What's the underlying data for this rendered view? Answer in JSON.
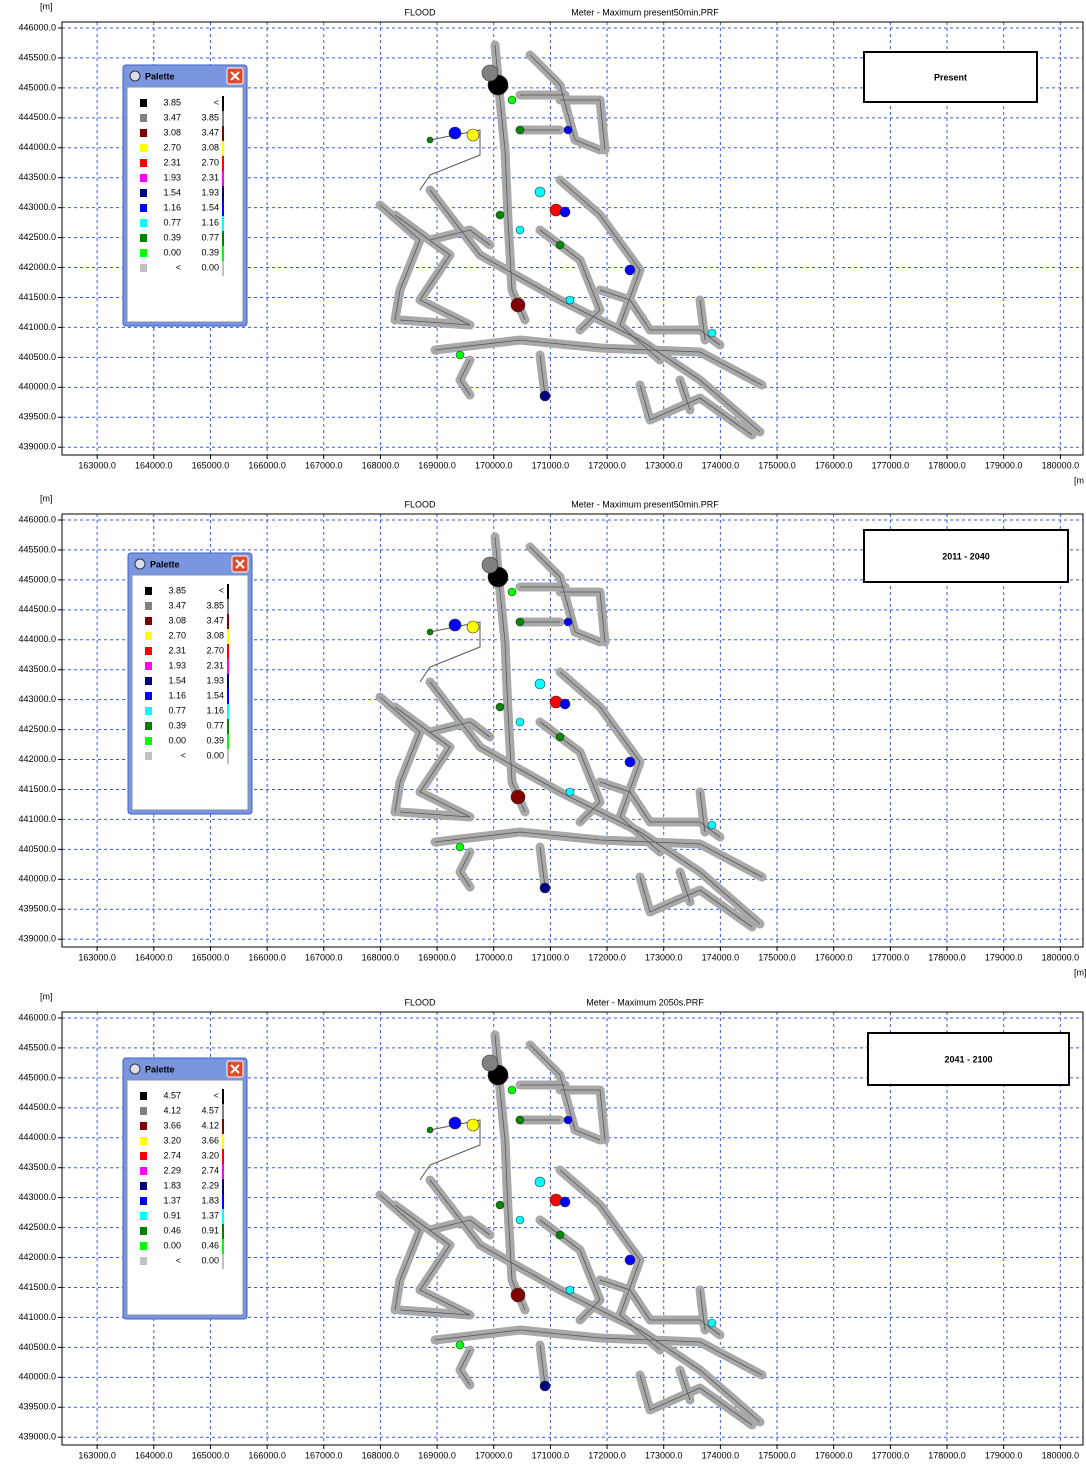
{
  "chart_data": [
    {
      "type": "map",
      "y_label": "[m]",
      "title": "FLOOD",
      "subtitle": "Meter - Maximum  present50min.PRF",
      "x_label": "[m",
      "scenario": "Present",
      "xlim": [
        162380,
        180400
      ],
      "ylim": [
        438870,
        446100
      ],
      "grid": true,
      "xticks": [
        {
          "value": 163000,
          "label": "163000.0"
        },
        {
          "value": 164000,
          "label": "164000.0"
        },
        {
          "value": 165000,
          "label": "165000.0"
        },
        {
          "value": 166000,
          "label": "166000.0"
        },
        {
          "value": 167000,
          "label": "167000.0"
        },
        {
          "value": 168000,
          "label": "168000.0"
        },
        {
          "value": 169000,
          "label": "169000.0"
        },
        {
          "value": 170000,
          "label": "170000.0"
        },
        {
          "value": 171000,
          "label": "171000.0"
        },
        {
          "value": 172000,
          "label": "172000.0"
        },
        {
          "value": 173000,
          "label": "173000.0"
        },
        {
          "value": 174000,
          "label": "174000.0"
        },
        {
          "value": 175000,
          "label": "175000.0"
        },
        {
          "value": 176000,
          "label": "176000.0"
        },
        {
          "value": 177000,
          "label": "177000.0"
        },
        {
          "value": 178000,
          "label": "178000.0"
        },
        {
          "value": 179000,
          "label": "179000.0"
        },
        {
          "value": 180000,
          "label": "180000.0"
        }
      ],
      "yticks": [
        {
          "value": 439000,
          "label": "439000.0"
        },
        {
          "value": 439500,
          "label": "439500.0"
        },
        {
          "value": 440000,
          "label": "440000.0"
        },
        {
          "value": 440500,
          "label": "440500.0"
        },
        {
          "value": 441000,
          "label": "441000.0"
        },
        {
          "value": 441500,
          "label": "441500.0"
        },
        {
          "value": 442000,
          "label": "442000.0"
        },
        {
          "value": 442500,
          "label": "442500.0"
        },
        {
          "value": 443000,
          "label": "443000.0"
        },
        {
          "value": 443500,
          "label": "443500.0"
        },
        {
          "value": 444000,
          "label": "444000.0"
        },
        {
          "value": 444500,
          "label": "444500.0"
        },
        {
          "value": 445000,
          "label": "445000.0"
        },
        {
          "value": 445500,
          "label": "445500.0"
        },
        {
          "value": 446000,
          "label": "446000.0"
        }
      ],
      "palette": {
        "title": "Palette",
        "rows": [
          {
            "color": "#000000",
            "from": "3.85",
            "to": "<"
          },
          {
            "color": "#808080",
            "from": "3.47",
            "to": "3.85"
          },
          {
            "color": "#800000",
            "from": "3.08",
            "to": "3.47"
          },
          {
            "color": "#ffff00",
            "from": "2.70",
            "to": "3.08"
          },
          {
            "color": "#ff0000",
            "from": "2.31",
            "to": "2.70"
          },
          {
            "color": "#ff00ff",
            "from": "1.93",
            "to": "2.31"
          },
          {
            "color": "#000080",
            "from": "1.54",
            "to": "1.93"
          },
          {
            "color": "#0000ff",
            "from": "1.16",
            "to": "1.54"
          },
          {
            "color": "#00ffff",
            "from": "0.77",
            "to": "1.16"
          },
          {
            "color": "#008000",
            "from": "0.39",
            "to": "0.77"
          },
          {
            "color": "#00ff00",
            "from": "0.00",
            "to": "0.39"
          },
          {
            "color": "#c0c0c0",
            "from": "<",
            "to": "0.00"
          }
        ]
      }
    },
    {
      "type": "map",
      "y_label": "[m]",
      "title": "FLOOD",
      "subtitle": "Meter - Maximum  present50min.PRF",
      "x_label": "[m]",
      "scenario": "2011 - 2040",
      "xlim": [
        162380,
        180400
      ],
      "ylim": [
        438870,
        446100
      ],
      "grid": true,
      "xticks": [
        {
          "value": 163000,
          "label": "163000.0"
        },
        {
          "value": 164000,
          "label": "164000.0"
        },
        {
          "value": 165000,
          "label": "165000.0"
        },
        {
          "value": 166000,
          "label": "166000.0"
        },
        {
          "value": 167000,
          "label": "167000.0"
        },
        {
          "value": 168000,
          "label": "168000.0"
        },
        {
          "value": 169000,
          "label": "169000.0"
        },
        {
          "value": 170000,
          "label": "170000.0"
        },
        {
          "value": 171000,
          "label": "171000.0"
        },
        {
          "value": 172000,
          "label": "172000.0"
        },
        {
          "value": 173000,
          "label": "173000.0"
        },
        {
          "value": 174000,
          "label": "174000.0"
        },
        {
          "value": 175000,
          "label": "175000.0"
        },
        {
          "value": 176000,
          "label": "176000.0"
        },
        {
          "value": 177000,
          "label": "177000.0"
        },
        {
          "value": 178000,
          "label": "178000.0"
        },
        {
          "value": 179000,
          "label": "179000.0"
        },
        {
          "value": 180000,
          "label": "180000.0"
        }
      ],
      "yticks": [
        {
          "value": 439000,
          "label": "439000.0"
        },
        {
          "value": 439500,
          "label": "439500.0"
        },
        {
          "value": 440000,
          "label": "440000.0"
        },
        {
          "value": 440500,
          "label": "440500.0"
        },
        {
          "value": 441000,
          "label": "441000.0"
        },
        {
          "value": 441500,
          "label": "441500.0"
        },
        {
          "value": 442000,
          "label": "442000.0"
        },
        {
          "value": 442500,
          "label": "442500.0"
        },
        {
          "value": 443000,
          "label": "443000.0"
        },
        {
          "value": 443500,
          "label": "443500.0"
        },
        {
          "value": 444000,
          "label": "444000.0"
        },
        {
          "value": 444500,
          "label": "444500.0"
        },
        {
          "value": 445000,
          "label": "445000.0"
        },
        {
          "value": 445500,
          "label": "445500.0"
        },
        {
          "value": 446000,
          "label": "446000.0"
        }
      ],
      "palette": {
        "title": "Palette",
        "rows": [
          {
            "color": "#000000",
            "from": "3.85",
            "to": "<"
          },
          {
            "color": "#808080",
            "from": "3.47",
            "to": "3.85"
          },
          {
            "color": "#800000",
            "from": "3.08",
            "to": "3.47"
          },
          {
            "color": "#ffff00",
            "from": "2.70",
            "to": "3.08"
          },
          {
            "color": "#ff0000",
            "from": "2.31",
            "to": "2.70"
          },
          {
            "color": "#ff00ff",
            "from": "1.93",
            "to": "2.31"
          },
          {
            "color": "#000080",
            "from": "1.54",
            "to": "1.93"
          },
          {
            "color": "#0000ff",
            "from": "1.16",
            "to": "1.54"
          },
          {
            "color": "#00ffff",
            "from": "0.77",
            "to": "1.16"
          },
          {
            "color": "#008000",
            "from": "0.39",
            "to": "0.77"
          },
          {
            "color": "#00ff00",
            "from": "0.00",
            "to": "0.39"
          },
          {
            "color": "#c0c0c0",
            "from": "<",
            "to": "0.00"
          }
        ]
      }
    },
    {
      "type": "map",
      "y_label": "[m]",
      "title": "FLOOD",
      "subtitle": "Meter - Maximum  2050s.PRF",
      "scenario": "2041 - 2100",
      "xlim": [
        162380,
        180400
      ],
      "ylim": [
        438870,
        446100
      ],
      "grid": true,
      "xticks": [
        {
          "value": 163000,
          "label": "163000.0"
        },
        {
          "value": 164000,
          "label": "164000.0"
        },
        {
          "value": 165000,
          "label": "165000.0"
        },
        {
          "value": 166000,
          "label": "166000.0"
        },
        {
          "value": 167000,
          "label": "167000.0"
        },
        {
          "value": 168000,
          "label": "168000.0"
        },
        {
          "value": 169000,
          "label": "169000.0"
        },
        {
          "value": 170000,
          "label": "170000.0"
        },
        {
          "value": 171000,
          "label": "171000.0"
        },
        {
          "value": 172000,
          "label": "172000.0"
        },
        {
          "value": 173000,
          "label": "173000.0"
        },
        {
          "value": 174000,
          "label": "174000.0"
        },
        {
          "value": 175000,
          "label": "175000.0"
        },
        {
          "value": 176000,
          "label": "176000.0"
        },
        {
          "value": 177000,
          "label": "177000.0"
        },
        {
          "value": 178000,
          "label": "178000.0"
        },
        {
          "value": 179000,
          "label": "179000.0"
        },
        {
          "value": 180000,
          "label": "180000.0"
        }
      ],
      "yticks": [
        {
          "value": 439000,
          "label": "439000.0"
        },
        {
          "value": 439500,
          "label": "439500.0"
        },
        {
          "value": 440000,
          "label": "440000.0"
        },
        {
          "value": 440500,
          "label": "440500.0"
        },
        {
          "value": 441000,
          "label": "441000.0"
        },
        {
          "value": 441500,
          "label": "441500.0"
        },
        {
          "value": 442000,
          "label": "442000.0"
        },
        {
          "value": 442500,
          "label": "442500.0"
        },
        {
          "value": 443000,
          "label": "443000.0"
        },
        {
          "value": 443500,
          "label": "443500.0"
        },
        {
          "value": 444000,
          "label": "444000.0"
        },
        {
          "value": 444500,
          "label": "444500.0"
        },
        {
          "value": 445000,
          "label": "445000.0"
        },
        {
          "value": 445500,
          "label": "445500.0"
        },
        {
          "value": 446000,
          "label": "446000.0"
        }
      ],
      "palette": {
        "title": "Palette",
        "rows": [
          {
            "color": "#000000",
            "from": "4.57",
            "to": "<"
          },
          {
            "color": "#808080",
            "from": "4.12",
            "to": "4.57"
          },
          {
            "color": "#800000",
            "from": "3.66",
            "to": "4.12"
          },
          {
            "color": "#ffff00",
            "from": "3.20",
            "to": "3.66"
          },
          {
            "color": "#ff0000",
            "from": "2.74",
            "to": "3.20"
          },
          {
            "color": "#ff00ff",
            "from": "2.29",
            "to": "2.74"
          },
          {
            "color": "#000080",
            "from": "1.83",
            "to": "2.29"
          },
          {
            "color": "#0000ff",
            "from": "1.37",
            "to": "1.83"
          },
          {
            "color": "#00ffff",
            "from": "0.91",
            "to": "1.37"
          },
          {
            "color": "#008000",
            "from": "0.46",
            "to": "0.91"
          },
          {
            "color": "#00ff00",
            "from": "0.00",
            "to": "0.46"
          },
          {
            "color": "#c0c0c0",
            "from": "<",
            "to": "0.00"
          }
        ]
      }
    }
  ]
}
